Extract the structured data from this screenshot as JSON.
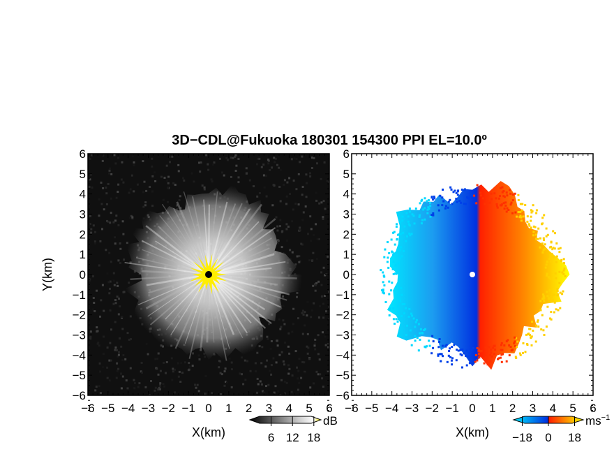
{
  "title": "3D−CDL@Fukuoka 180301 154300 PPI EL=10.0º",
  "chart_data": [
    {
      "type": "heatmap",
      "field": "reflectivity",
      "xlabel": "X(km)",
      "ylabel": "Y(km)",
      "xlim": [
        -6,
        6
      ],
      "ylim": [
        -6,
        6
      ],
      "ticks": [
        "−6",
        "−5",
        "−4",
        "−3",
        "−2",
        "−1",
        "0",
        "1",
        "2",
        "3",
        "4",
        "5",
        "6"
      ],
      "echo_radius_km": 4.0,
      "saturated_core_radius_km": 0.9,
      "colorbar": {
        "unit": "dB",
        "tick_labels": [
          "6",
          "12",
          "18"
        ],
        "tick_values": [
          6,
          12,
          18
        ],
        "range": [
          0,
          20
        ],
        "colors": [
          "#000000",
          "#ffffff",
          "#ffee00"
        ]
      }
    },
    {
      "type": "heatmap",
      "field": "doppler_velocity",
      "xlabel": "X(km)",
      "ylabel": "",
      "xlim": [
        -6,
        6
      ],
      "ylim": [
        -6,
        6
      ],
      "ticks": [
        "−6",
        "−5",
        "−4",
        "−3",
        "−2",
        "−1",
        "0",
        "1",
        "2",
        "3",
        "4",
        "5",
        "6"
      ],
      "echo_radius_km": 4.2,
      "colorbar": {
        "unit": "ms",
        "unit_exponent": "−1",
        "tick_labels": [
          "−18",
          "0",
          "18"
        ],
        "tick_values": [
          -18,
          0,
          18
        ],
        "range": [
          -24,
          24
        ],
        "colors": [
          "#00e8ff",
          "#0030e0",
          "#ff2000",
          "#ffff00"
        ]
      }
    }
  ]
}
